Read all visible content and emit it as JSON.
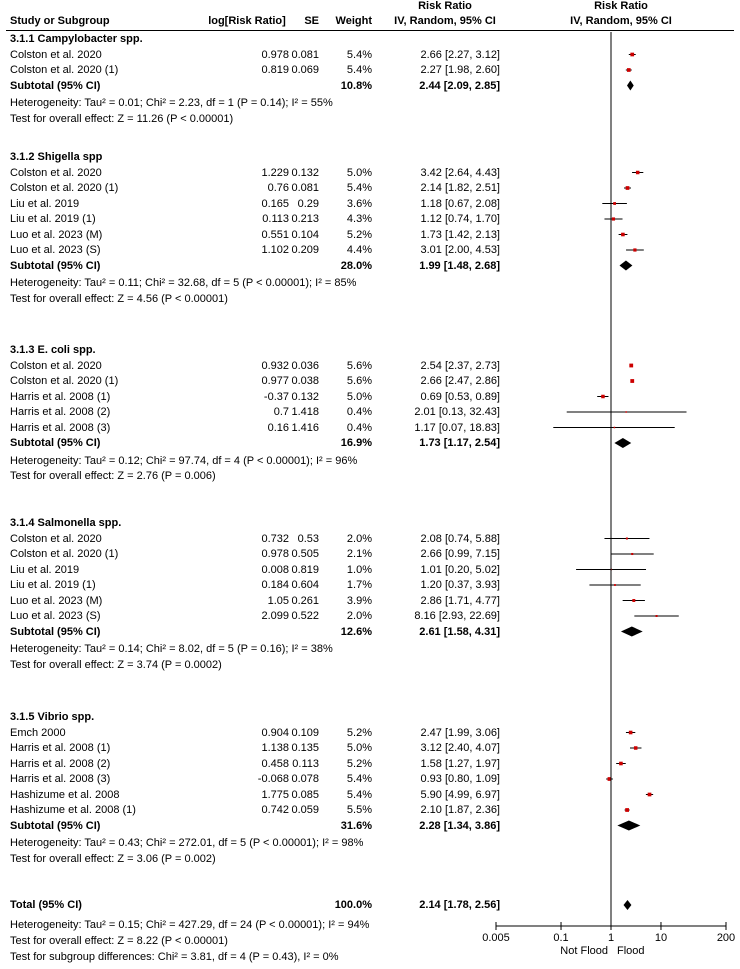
{
  "headers": {
    "study": "Study or Subgroup",
    "logrr": "log[Risk Ratio]",
    "se": "SE",
    "weight": "Weight",
    "ci_top": "Risk Ratio",
    "ci_bottom": "IV, Random, 95% CI",
    "plot_top": "Risk Ratio",
    "plot_bottom": "IV, Random, 95% CI"
  },
  "groups": [
    {
      "title": "3.1.1 Campylobacter spp.",
      "studies": [
        {
          "name": "Colston et al. 2020",
          "logrr": "0.978",
          "se": "0.081",
          "weight": "5.4%",
          "ci": "2.66 [2.27, 3.12]",
          "rr": 2.66,
          "lo": 2.27,
          "hi": 3.12
        },
        {
          "name": "Colston et al. 2020 (1)",
          "logrr": "0.819",
          "se": "0.069",
          "weight": "5.4%",
          "ci": "2.27 [1.98, 2.60]",
          "rr": 2.27,
          "lo": 1.98,
          "hi": 2.6
        }
      ],
      "subtotal": {
        "label": "Subtotal (95% CI)",
        "weight": "10.8%",
        "ci": "2.44 [2.09, 2.85]",
        "rr": 2.44,
        "lo": 2.09,
        "hi": 2.85
      },
      "heterogeneity": "Heterogeneity: Tau² = 0.01; Chi² = 2.23, df = 1 (P = 0.14); I² = 55%",
      "effect": "Test for overall effect: Z = 11.26 (P < 0.00001)"
    },
    {
      "title": "3.1.2 Shigella spp",
      "studies": [
        {
          "name": "Colston et al. 2020",
          "logrr": "1.229",
          "se": "0.132",
          "weight": "5.0%",
          "ci": "3.42 [2.64, 4.43]",
          "rr": 3.42,
          "lo": 2.64,
          "hi": 4.43
        },
        {
          "name": "Colston et al. 2020 (1)",
          "logrr": "0.76",
          "se": "0.081",
          "weight": "5.4%",
          "ci": "2.14 [1.82, 2.51]",
          "rr": 2.14,
          "lo": 1.82,
          "hi": 2.51
        },
        {
          "name": "Liu et al. 2019",
          "logrr": "0.165",
          "se": "0.29",
          "weight": "3.6%",
          "ci": "1.18 [0.67, 2.08]",
          "rr": 1.18,
          "lo": 0.67,
          "hi": 2.08
        },
        {
          "name": "Liu et al. 2019 (1)",
          "logrr": "0.113",
          "se": "0.213",
          "weight": "4.3%",
          "ci": "1.12 [0.74, 1.70]",
          "rr": 1.12,
          "lo": 0.74,
          "hi": 1.7
        },
        {
          "name": "Luo et al. 2023 (M)",
          "logrr": "0.551",
          "se": "0.104",
          "weight": "5.2%",
          "ci": "1.73 [1.42, 2.13]",
          "rr": 1.73,
          "lo": 1.42,
          "hi": 2.13
        },
        {
          "name": "Luo et al. 2023 (S)",
          "logrr": "1.102",
          "se": "0.209",
          "weight": "4.4%",
          "ci": "3.01 [2.00, 4.53]",
          "rr": 3.01,
          "lo": 2.0,
          "hi": 4.53
        }
      ],
      "subtotal": {
        "label": "Subtotal (95% CI)",
        "weight": "28.0%",
        "ci": "1.99 [1.48, 2.68]",
        "rr": 1.99,
        "lo": 1.48,
        "hi": 2.68
      },
      "heterogeneity": "Heterogeneity: Tau² = 0.11; Chi² = 32.68, df = 5 (P < 0.00001); I² = 85%",
      "effect": "Test for overall effect: Z = 4.56 (P < 0.00001)"
    },
    {
      "title": "3.1.3 E. coli spp.",
      "studies": [
        {
          "name": "Colston et al. 2020",
          "logrr": "0.932",
          "se": "0.036",
          "weight": "5.6%",
          "ci": "2.54 [2.37, 2.73]",
          "rr": 2.54,
          "lo": 2.37,
          "hi": 2.73
        },
        {
          "name": "Colston et al. 2020 (1)",
          "logrr": "0.977",
          "se": "0.038",
          "weight": "5.6%",
          "ci": "2.66 [2.47, 2.86]",
          "rr": 2.66,
          "lo": 2.47,
          "hi": 2.86
        },
        {
          "name": "Harris et al. 2008 (1)",
          "logrr": "-0.37",
          "se": "0.132",
          "weight": "5.0%",
          "ci": "0.69 [0.53, 0.89]",
          "rr": 0.69,
          "lo": 0.53,
          "hi": 0.89
        },
        {
          "name": "Harris et al. 2008 (2)",
          "logrr": "0.7",
          "se": "1.418",
          "weight": "0.4%",
          "ci": "2.01 [0.13, 32.43]",
          "rr": 2.01,
          "lo": 0.13,
          "hi": 32.43
        },
        {
          "name": "Harris et al. 2008 (3)",
          "logrr": "0.16",
          "se": "1.416",
          "weight": "0.4%",
          "ci": "1.17 [0.07, 18.83]",
          "rr": 1.17,
          "lo": 0.07,
          "hi": 18.83
        }
      ],
      "subtotal": {
        "label": "Subtotal (95% CI)",
        "weight": "16.9%",
        "ci": "1.73 [1.17, 2.54]",
        "rr": 1.73,
        "lo": 1.17,
        "hi": 2.54
      },
      "heterogeneity": "Heterogeneity: Tau² = 0.12; Chi² = 97.74, df = 4 (P < 0.00001); I² = 96%",
      "effect": "Test for overall effect: Z = 2.76 (P = 0.006)"
    },
    {
      "title": "3.1.4 Salmonella spp.",
      "studies": [
        {
          "name": "Colston et al. 2020",
          "logrr": "0.732",
          "se": "0.53",
          "weight": "2.0%",
          "ci": "2.08 [0.74, 5.88]",
          "rr": 2.08,
          "lo": 0.74,
          "hi": 5.88
        },
        {
          "name": "Colston et al. 2020 (1)",
          "logrr": "0.978",
          "se": "0.505",
          "weight": "2.1%",
          "ci": "2.66 [0.99, 7.15]",
          "rr": 2.66,
          "lo": 0.99,
          "hi": 7.15
        },
        {
          "name": "Liu et al. 2019",
          "logrr": "0.008",
          "se": "0.819",
          "weight": "1.0%",
          "ci": "1.01 [0.20, 5.02]",
          "rr": 1.01,
          "lo": 0.2,
          "hi": 5.02
        },
        {
          "name": "Liu et al. 2019 (1)",
          "logrr": "0.184",
          "se": "0.604",
          "weight": "1.7%",
          "ci": "1.20 [0.37, 3.93]",
          "rr": 1.2,
          "lo": 0.37,
          "hi": 3.93
        },
        {
          "name": "Luo et al. 2023 (M)",
          "logrr": "1.05",
          "se": "0.261",
          "weight": "3.9%",
          "ci": "2.86 [1.71, 4.77]",
          "rr": 2.86,
          "lo": 1.71,
          "hi": 4.77
        },
        {
          "name": "Luo et al. 2023 (S)",
          "logrr": "2.099",
          "se": "0.522",
          "weight": "2.0%",
          "ci": "8.16 [2.93, 22.69]",
          "rr": 8.16,
          "lo": 2.93,
          "hi": 22.69
        }
      ],
      "subtotal": {
        "label": "Subtotal (95% CI)",
        "weight": "12.6%",
        "ci": "2.61 [1.58, 4.31]",
        "rr": 2.61,
        "lo": 1.58,
        "hi": 4.31
      },
      "heterogeneity": "Heterogeneity: Tau² = 0.14; Chi² = 8.02, df = 5 (P = 0.16); I² = 38%",
      "effect": "Test for overall effect: Z = 3.74 (P = 0.0002)"
    },
    {
      "title": "3.1.5 Vibrio spp.",
      "studies": [
        {
          "name": "Emch 2000",
          "logrr": "0.904",
          "se": "0.109",
          "weight": "5.2%",
          "ci": "2.47 [1.99, 3.06]",
          "rr": 2.47,
          "lo": 1.99,
          "hi": 3.06
        },
        {
          "name": "Harris et al. 2008 (1)",
          "logrr": "1.138",
          "se": "0.135",
          "weight": "5.0%",
          "ci": "3.12 [2.40, 4.07]",
          "rr": 3.12,
          "lo": 2.4,
          "hi": 4.07
        },
        {
          "name": "Harris et al. 2008 (2)",
          "logrr": "0.458",
          "se": "0.113",
          "weight": "5.2%",
          "ci": "1.58 [1.27, 1.97]",
          "rr": 1.58,
          "lo": 1.27,
          "hi": 1.97
        },
        {
          "name": "Harris et al. 2008 (3)",
          "logrr": "-0.068",
          "se": "0.078",
          "weight": "5.4%",
          "ci": "0.93 [0.80, 1.09]",
          "rr": 0.93,
          "lo": 0.8,
          "hi": 1.09
        },
        {
          "name": "Hashizume et al. 2008",
          "logrr": "1.775",
          "se": "0.085",
          "weight": "5.4%",
          "ci": "5.90 [4.99, 6.97]",
          "rr": 5.9,
          "lo": 4.99,
          "hi": 6.97
        },
        {
          "name": "Hashizume et al. 2008 (1)",
          "logrr": "0.742",
          "se": "0.059",
          "weight": "5.5%",
          "ci": "2.10 [1.87, 2.36]",
          "rr": 2.1,
          "lo": 1.87,
          "hi": 2.36
        }
      ],
      "subtotal": {
        "label": "Subtotal (95% CI)",
        "weight": "31.6%",
        "ci": "2.28 [1.34, 3.86]",
        "rr": 2.28,
        "lo": 1.34,
        "hi": 3.86
      },
      "heterogeneity": "Heterogeneity: Tau² = 0.43; Chi² = 272.01, df = 5 (P < 0.00001); I² = 98%",
      "effect": "Test for overall effect: Z = 3.06 (P = 0.002)"
    }
  ],
  "total": {
    "label": "Total (95% CI)",
    "weight": "100.0%",
    "ci": "2.14 [1.78, 2.56]",
    "rr": 2.14,
    "lo": 1.78,
    "hi": 2.56,
    "heterogeneity": "Heterogeneity: Tau² = 0.15; Chi² = 427.29, df = 24 (P < 0.00001); I² = 94%",
    "effect": "Test for overall effect: Z = 8.22 (P < 0.00001)",
    "subgroup": "Test for subgroup differences: Chi² = 3.81, df = 4 (P = 0.43), I² = 0%"
  },
  "chart_data": {
    "type": "scatter",
    "scale": "log",
    "xlim": [
      0.005,
      200
    ],
    "ticks": [
      "0.005",
      "0.1",
      "1",
      "10",
      "200"
    ],
    "tick_values": [
      0.005,
      0.1,
      1,
      10,
      200
    ],
    "null_line": 1,
    "xlabel_left": "Not Flood",
    "xlabel_right": "Flood",
    "marker_color": "#cc0000"
  }
}
